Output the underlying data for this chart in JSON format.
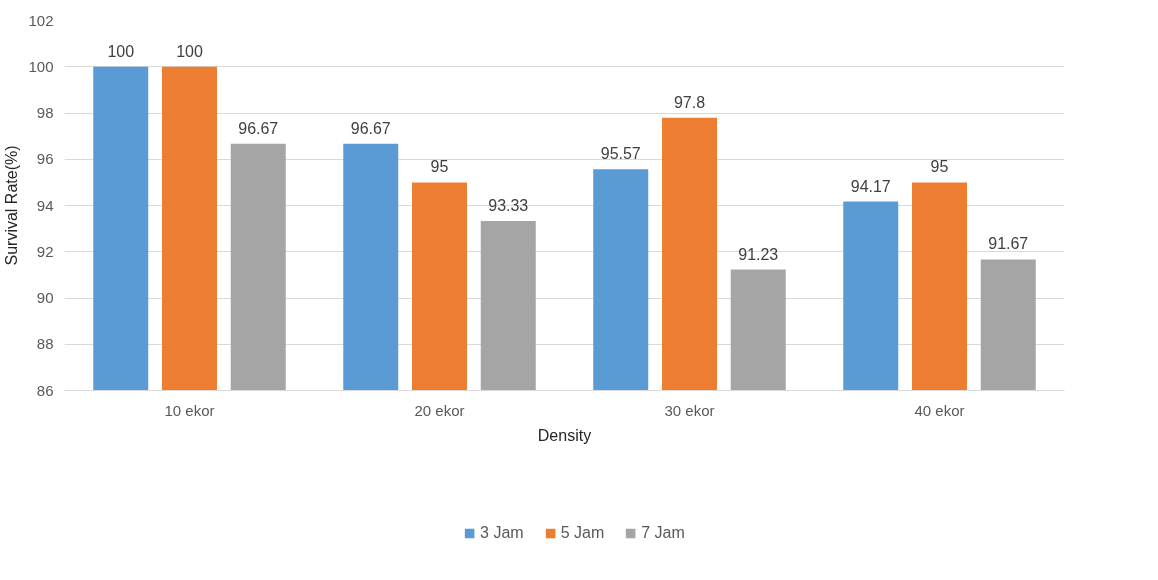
{
  "chart_data": {
    "type": "bar",
    "xlabel": "Density",
    "ylabel": "Survival Rate(%)",
    "categories": [
      "10 ekor",
      "20 ekor",
      "30 ekor",
      "40 ekor"
    ],
    "series": [
      {
        "name": "3 Jam",
        "color": "#5b9bd5",
        "values": [
          100,
          96.67,
          95.57,
          94.17
        ]
      },
      {
        "name": "5 Jam",
        "color": "#ed7d31",
        "values": [
          100,
          95,
          97.8,
          95
        ]
      },
      {
        "name": "7 Jam",
        "color": "#a5a5a5",
        "values": [
          96.67,
          93.33,
          91.23,
          91.67
        ]
      }
    ],
    "ylim": [
      86,
      102
    ],
    "yticks": [
      86,
      88,
      90,
      92,
      94,
      96,
      98,
      100,
      102
    ],
    "grid": "y",
    "legend": "bottom",
    "data_labels": true
  }
}
